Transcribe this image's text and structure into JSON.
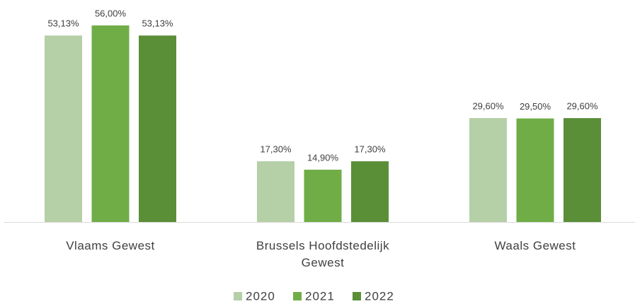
{
  "chart_data": {
    "type": "bar",
    "categories": [
      "Vlaams Gewest",
      "Brussels Hoofdstedelijk Gewest",
      "Waals Gewest"
    ],
    "series": [
      {
        "name": "2020",
        "color": "#b5cfa7",
        "values": [
          53.13,
          17.3,
          29.6
        ],
        "value_labels": [
          "53,13%",
          "17,30%",
          "29,60%"
        ]
      },
      {
        "name": "2021",
        "color": "#70ad47",
        "values": [
          56.0,
          14.9,
          29.5
        ],
        "value_labels": [
          "56,00%",
          "14,90%",
          "29,50%"
        ]
      },
      {
        "name": "2022",
        "color": "#5a8f38",
        "values": [
          53.13,
          17.3,
          29.6
        ],
        "value_labels": [
          "53,13%",
          "17,30%",
          "29,60%"
        ]
      }
    ],
    "legend": "bottom"
  }
}
